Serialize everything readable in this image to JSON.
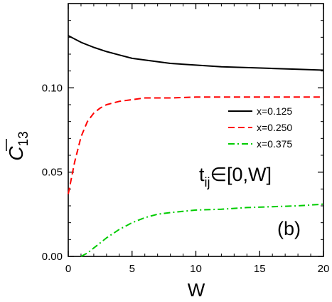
{
  "chart_data": {
    "type": "line",
    "xlabel": "W",
    "ylabel": {
      "base": "C",
      "sub": "13"
    },
    "xlim": [
      0,
      20
    ],
    "ylim": [
      0,
      0.15
    ],
    "xticks": [
      "0",
      "5",
      "10",
      "15",
      "20"
    ],
    "yticks": [
      "0.00",
      "0.05",
      "0.10"
    ],
    "grid": false,
    "legend_position": "right",
    "series": [
      {
        "name": "x=0.125",
        "color": "#000000",
        "dash": "solid",
        "x": [
          0,
          0.5,
          1,
          1.5,
          2,
          3,
          4,
          5,
          6,
          8,
          10,
          12,
          14,
          16,
          18,
          20
        ],
        "y": [
          0.131,
          0.129,
          0.127,
          0.1255,
          0.124,
          0.1215,
          0.1195,
          0.1175,
          0.1165,
          0.1145,
          0.1135,
          0.1125,
          0.112,
          0.1115,
          0.111,
          0.1105
        ]
      },
      {
        "name": "x=0.250",
        "color": "#ff0000",
        "dash": "dashed",
        "x": [
          0,
          0.5,
          1,
          1.5,
          2,
          2.5,
          3,
          4,
          5,
          6,
          8,
          10,
          12,
          14,
          16,
          18,
          20
        ],
        "y": [
          0.037,
          0.056,
          0.071,
          0.08,
          0.085,
          0.088,
          0.09,
          0.092,
          0.093,
          0.094,
          0.094,
          0.0945,
          0.0945,
          0.0945,
          0.0945,
          0.0945,
          0.0945
        ]
      },
      {
        "name": "x=0.375",
        "color": "#00cc00",
        "dash": "dashdot",
        "x": [
          1.0,
          1.5,
          2,
          2.5,
          3,
          4,
          5,
          6,
          7,
          8,
          10,
          12,
          14,
          16,
          18,
          20
        ],
        "y": [
          0.0,
          0.002,
          0.005,
          0.008,
          0.011,
          0.016,
          0.02,
          0.023,
          0.025,
          0.026,
          0.0275,
          0.028,
          0.029,
          0.0295,
          0.03,
          0.031
        ]
      }
    ],
    "annotations": {
      "range_text": "t",
      "range_sub": "ij",
      "range_rest": "∈[0,W]",
      "panel_label": "(b)"
    }
  }
}
